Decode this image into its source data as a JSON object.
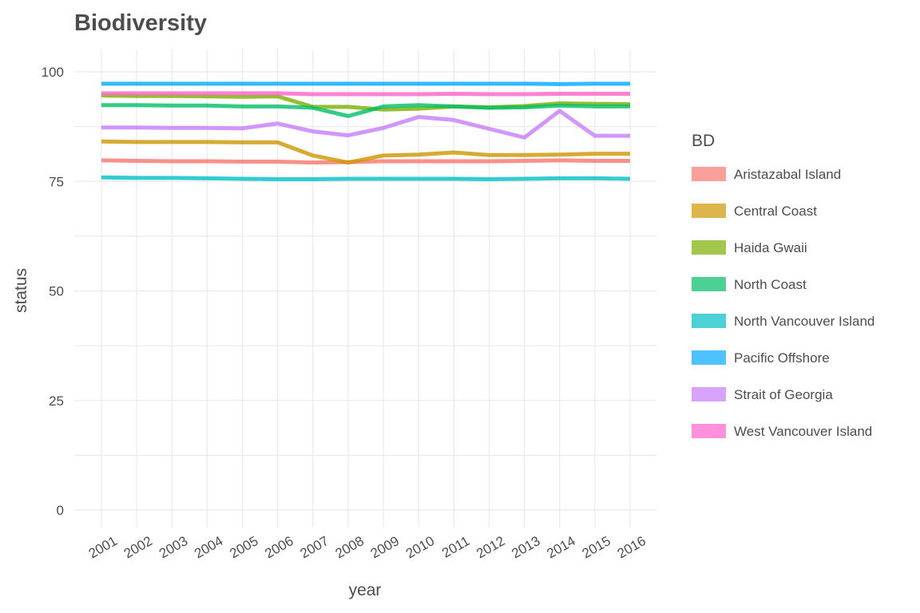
{
  "chart_data": {
    "type": "line",
    "title": "Biodiversity",
    "xlabel": "year",
    "ylabel": "status",
    "x": [
      2001,
      2002,
      2003,
      2004,
      2005,
      2006,
      2007,
      2008,
      2009,
      2010,
      2011,
      2012,
      2013,
      2014,
      2015,
      2016
    ],
    "ylim": [
      0,
      100
    ],
    "y_ticks": [
      0,
      25,
      50,
      75,
      100
    ],
    "grid": true,
    "legend": {
      "title": "BD",
      "placement": "right"
    },
    "series": [
      {
        "name": "Aristazabal Island",
        "color": "#F8766D",
        "values": [
          79.8,
          79.7,
          79.6,
          79.6,
          79.5,
          79.5,
          79.3,
          79.4,
          79.6,
          79.6,
          79.6,
          79.6,
          79.7,
          79.8,
          79.7,
          79.7
        ]
      },
      {
        "name": "Central Coast",
        "color": "#CD9600",
        "values": [
          84.1,
          84.0,
          84.0,
          84.0,
          83.9,
          83.9,
          80.9,
          79.3,
          80.9,
          81.1,
          81.6,
          81.0,
          81.0,
          81.1,
          81.3,
          81.3
        ]
      },
      {
        "name": "Haida Gwaii",
        "color": "#7CAE00",
        "values": [
          94.6,
          94.5,
          94.5,
          94.4,
          94.3,
          94.4,
          92.0,
          92.0,
          91.4,
          91.6,
          92.1,
          91.9,
          92.2,
          92.8,
          92.7,
          92.6
        ]
      },
      {
        "name": "North Coast",
        "color": "#00BE67",
        "values": [
          92.4,
          92.4,
          92.3,
          92.3,
          92.1,
          92.1,
          91.8,
          89.9,
          92.1,
          92.4,
          92.1,
          91.8,
          91.9,
          92.3,
          92.1,
          92.1
        ]
      },
      {
        "name": "North Vancouver Island",
        "color": "#00BFC4",
        "values": [
          75.9,
          75.8,
          75.8,
          75.7,
          75.6,
          75.5,
          75.5,
          75.6,
          75.6,
          75.6,
          75.6,
          75.5,
          75.6,
          75.7,
          75.7,
          75.6
        ]
      },
      {
        "name": "Pacific Offshore",
        "color": "#00A9FF",
        "values": [
          97.3,
          97.3,
          97.3,
          97.3,
          97.3,
          97.3,
          97.3,
          97.3,
          97.3,
          97.3,
          97.3,
          97.3,
          97.3,
          97.2,
          97.3,
          97.3
        ]
      },
      {
        "name": "Strait of Georgia",
        "color": "#C77CFF",
        "values": [
          87.3,
          87.3,
          87.2,
          87.2,
          87.1,
          88.2,
          86.4,
          85.5,
          87.2,
          89.7,
          89.0,
          87.0,
          85.0,
          91.1,
          85.4,
          85.4
        ]
      },
      {
        "name": "West Vancouver Island",
        "color": "#FF61CC",
        "values": [
          95.1,
          95.1,
          95.1,
          95.1,
          95.1,
          95.1,
          94.9,
          94.9,
          94.9,
          94.9,
          95.0,
          94.9,
          94.9,
          95.0,
          95.0,
          95.0
        ]
      }
    ]
  }
}
